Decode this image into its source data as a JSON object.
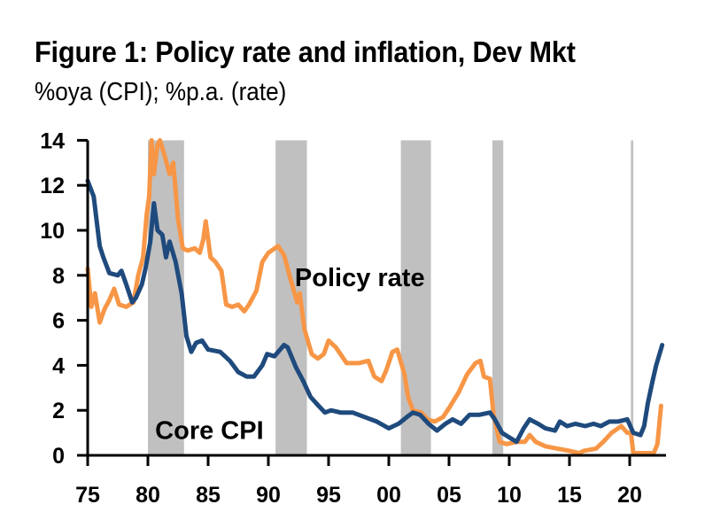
{
  "header": {
    "title": "Figure 1: Policy rate and inflation, Dev Mkt",
    "subtitle": "%oya (CPI); %p.a. (rate)"
  },
  "colors": {
    "core_cpi": "#1f4a7d",
    "policy_rate": "#f79646",
    "recession_band": "#c0c0c0",
    "axis": "#000000"
  },
  "chart_data": {
    "type": "line",
    "title": "Figure 1: Policy rate and inflation, Dev Mkt",
    "subtitle": "%oya (CPI); %p.a. (rate)",
    "xlabel": "",
    "ylabel": "",
    "xlim": [
      1975,
      2023
    ],
    "ylim": [
      0,
      14
    ],
    "grid": false,
    "legend": "inline annotations",
    "x_ticks": [
      1975,
      1980,
      1985,
      1990,
      1995,
      2000,
      2005,
      2010,
      2015,
      2020
    ],
    "x_tick_labels": [
      "75",
      "80",
      "85",
      "90",
      "95",
      "00",
      "05",
      "10",
      "15",
      "20"
    ],
    "y_ticks": [
      0,
      2,
      4,
      6,
      8,
      10,
      12,
      14
    ],
    "y_tick_labels": [
      "0",
      "2",
      "4",
      "6",
      "8",
      "10",
      "12",
      "14"
    ],
    "annotations": [
      {
        "text": "Policy rate",
        "x": 1992.2,
        "y": 8.0,
        "series": "Policy rate"
      },
      {
        "text": "Core CPI",
        "x": 1980.6,
        "y": 1.2,
        "series": "Core CPI"
      }
    ],
    "shaded_periods": [
      [
        1980.0,
        1983.0
      ],
      [
        1990.6,
        1993.2
      ],
      [
        2001.0,
        2003.5
      ],
      [
        2008.6,
        2009.5
      ],
      [
        2020.1,
        2020.3
      ]
    ],
    "series": [
      {
        "name": "Core CPI",
        "x": [
          1975.0,
          1975.5,
          1976.0,
          1976.3,
          1976.8,
          1977.5,
          1977.8,
          1978.2,
          1978.7,
          1979.0,
          1979.5,
          1979.8,
          1980.2,
          1980.5,
          1980.8,
          1981.2,
          1981.5,
          1981.8,
          1982.3,
          1982.8,
          1983.2,
          1983.6,
          1984.0,
          1984.5,
          1985.0,
          1986.0,
          1986.8,
          1987.5,
          1988.2,
          1988.8,
          1989.5,
          1989.9,
          1990.5,
          1991.3,
          1991.6,
          1992.3,
          1992.9,
          1993.5,
          1994.0,
          1994.7,
          1995.2,
          1996.0,
          1997.0,
          1998.0,
          1999.0,
          2000.0,
          2000.8,
          2001.5,
          2002.0,
          2002.6,
          2003.3,
          2004.0,
          2004.7,
          2005.3,
          2006.0,
          2006.7,
          2007.5,
          2008.4,
          2008.8,
          2009.4,
          2010.0,
          2010.6,
          2011.2,
          2011.7,
          2012.4,
          2013.0,
          2013.8,
          2014.2,
          2014.8,
          2015.5,
          2016.3,
          2017.0,
          2017.6,
          2018.3,
          2019.0,
          2019.8,
          2020.3,
          2020.9,
          2021.2,
          2021.5,
          2021.9,
          2022.2,
          2022.7
        ],
        "values": [
          12.2,
          11.5,
          9.3,
          8.8,
          8.1,
          8.0,
          8.2,
          7.6,
          6.8,
          7.0,
          7.6,
          8.3,
          9.5,
          11.2,
          10.0,
          9.8,
          8.8,
          9.5,
          8.6,
          7.2,
          5.3,
          4.6,
          5.0,
          5.1,
          4.7,
          4.6,
          4.2,
          3.7,
          3.5,
          3.5,
          4.0,
          4.5,
          4.4,
          4.9,
          4.8,
          3.9,
          3.3,
          2.6,
          2.3,
          1.9,
          2.0,
          1.9,
          1.9,
          1.7,
          1.5,
          1.2,
          1.4,
          1.7,
          1.9,
          1.8,
          1.4,
          1.1,
          1.4,
          1.6,
          1.4,
          1.8,
          1.8,
          1.9,
          1.6,
          1.0,
          0.8,
          0.6,
          1.2,
          1.6,
          1.4,
          1.2,
          1.1,
          1.5,
          1.3,
          1.4,
          1.3,
          1.4,
          1.3,
          1.5,
          1.5,
          1.6,
          1.0,
          0.9,
          1.3,
          2.3,
          3.3,
          4.0,
          4.9
        ]
      },
      {
        "name": "Policy rate",
        "x": [
          1975.0,
          1975.3,
          1975.6,
          1976.0,
          1976.4,
          1976.8,
          1977.2,
          1977.6,
          1978.2,
          1978.8,
          1979.2,
          1979.6,
          1979.9,
          1980.1,
          1980.3,
          1980.5,
          1980.8,
          1981.0,
          1981.4,
          1981.8,
          1982.1,
          1982.5,
          1982.9,
          1983.3,
          1983.9,
          1984.3,
          1984.6,
          1984.8,
          1985.2,
          1985.6,
          1986.1,
          1986.5,
          1987.0,
          1987.5,
          1988.0,
          1988.4,
          1989.0,
          1989.5,
          1990.0,
          1990.8,
          1991.3,
          1991.8,
          1992.4,
          1992.6,
          1993.0,
          1993.6,
          1994.1,
          1994.6,
          1995.0,
          1995.6,
          1996.5,
          1997.5,
          1998.3,
          1998.8,
          1999.4,
          1999.8,
          2000.3,
          2000.7,
          2001.3,
          2001.6,
          2002.0,
          2002.7,
          2003.2,
          2003.8,
          2004.5,
          2005.0,
          2005.8,
          2006.5,
          2007.2,
          2007.6,
          2007.9,
          2008.4,
          2008.7,
          2009.2,
          2009.8,
          2010.6,
          2011.3,
          2011.7,
          2012.2,
          2013.0,
          2014.0,
          2015.0,
          2015.8,
          2016.2,
          2017.2,
          2017.8,
          2018.5,
          2019.3,
          2019.8,
          2020.1,
          2020.3,
          2021.0,
          2022.0,
          2022.3,
          2022.6
        ],
        "values": [
          8.3,
          6.6,
          7.2,
          5.9,
          6.5,
          6.9,
          7.4,
          6.7,
          6.6,
          6.8,
          8.0,
          8.8,
          10.7,
          11.5,
          14.0,
          12.5,
          13.8,
          14.0,
          13.3,
          12.5,
          13.0,
          10.5,
          9.2,
          9.1,
          9.2,
          9.0,
          9.6,
          10.4,
          8.8,
          8.6,
          8.2,
          6.7,
          6.6,
          6.7,
          6.4,
          6.7,
          7.3,
          8.6,
          9.0,
          9.3,
          8.9,
          7.9,
          6.8,
          7.2,
          5.6,
          4.5,
          4.3,
          4.5,
          5.1,
          4.8,
          4.1,
          4.1,
          4.2,
          3.5,
          3.3,
          3.8,
          4.6,
          4.7,
          3.6,
          2.6,
          2.0,
          1.9,
          1.6,
          1.5,
          1.7,
          2.1,
          2.8,
          3.6,
          4.1,
          4.2,
          3.5,
          3.4,
          1.8,
          0.6,
          0.5,
          0.6,
          0.6,
          0.9,
          0.6,
          0.4,
          0.3,
          0.2,
          0.1,
          0.2,
          0.3,
          0.6,
          1.0,
          1.3,
          1.0,
          1.0,
          0.1,
          0.1,
          0.1,
          0.5,
          2.2
        ]
      }
    ]
  }
}
